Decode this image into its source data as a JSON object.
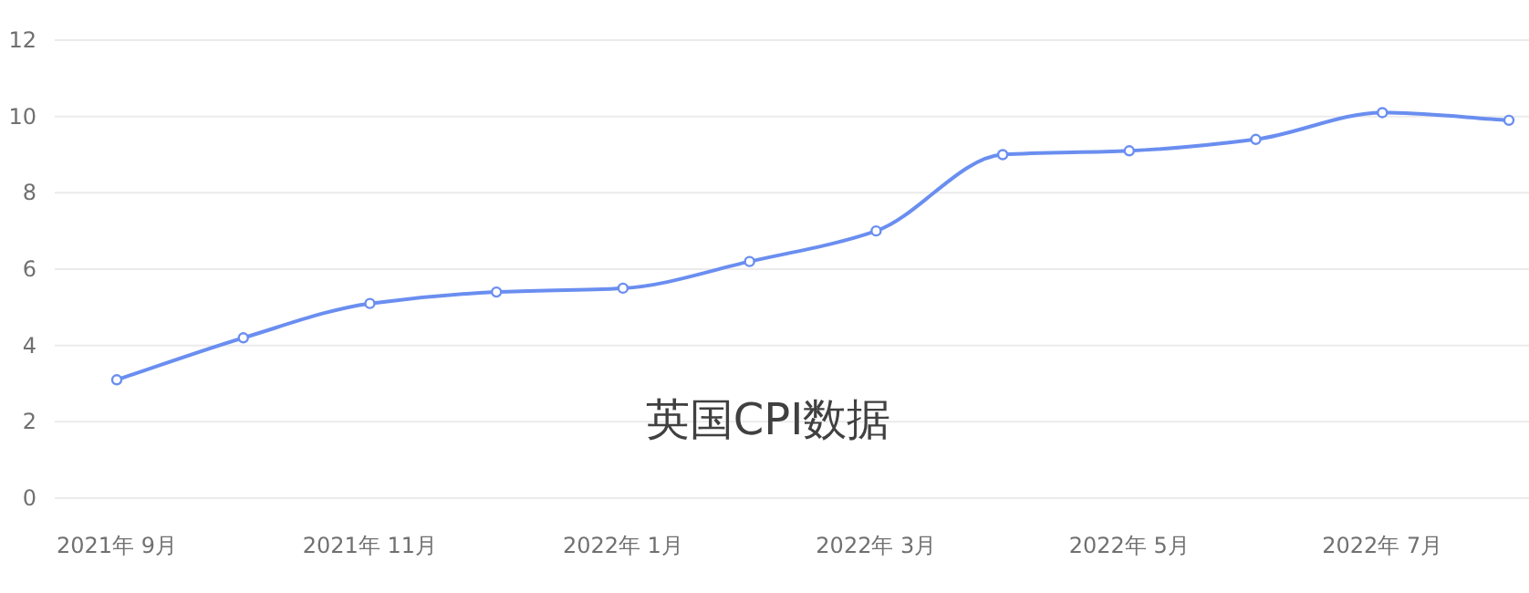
{
  "chart_data": {
    "type": "line",
    "title": "英国CPI数据",
    "categories": [
      "2021年 9月",
      null,
      "2021年 11月",
      null,
      "2022年 1月",
      null,
      "2022年 3月",
      null,
      "2022年 5月",
      null,
      "2022年 7月",
      null
    ],
    "values": [
      3.1,
      4.2,
      5.1,
      5.4,
      5.5,
      6.2,
      7.0,
      9.0,
      9.1,
      9.4,
      10.1,
      9.9
    ],
    "color": "#6a8ef0",
    "ylim": [
      0,
      12
    ],
    "yticks": [
      0,
      2,
      4,
      6,
      8,
      10,
      12
    ],
    "grid": "y",
    "marker": "circle"
  }
}
